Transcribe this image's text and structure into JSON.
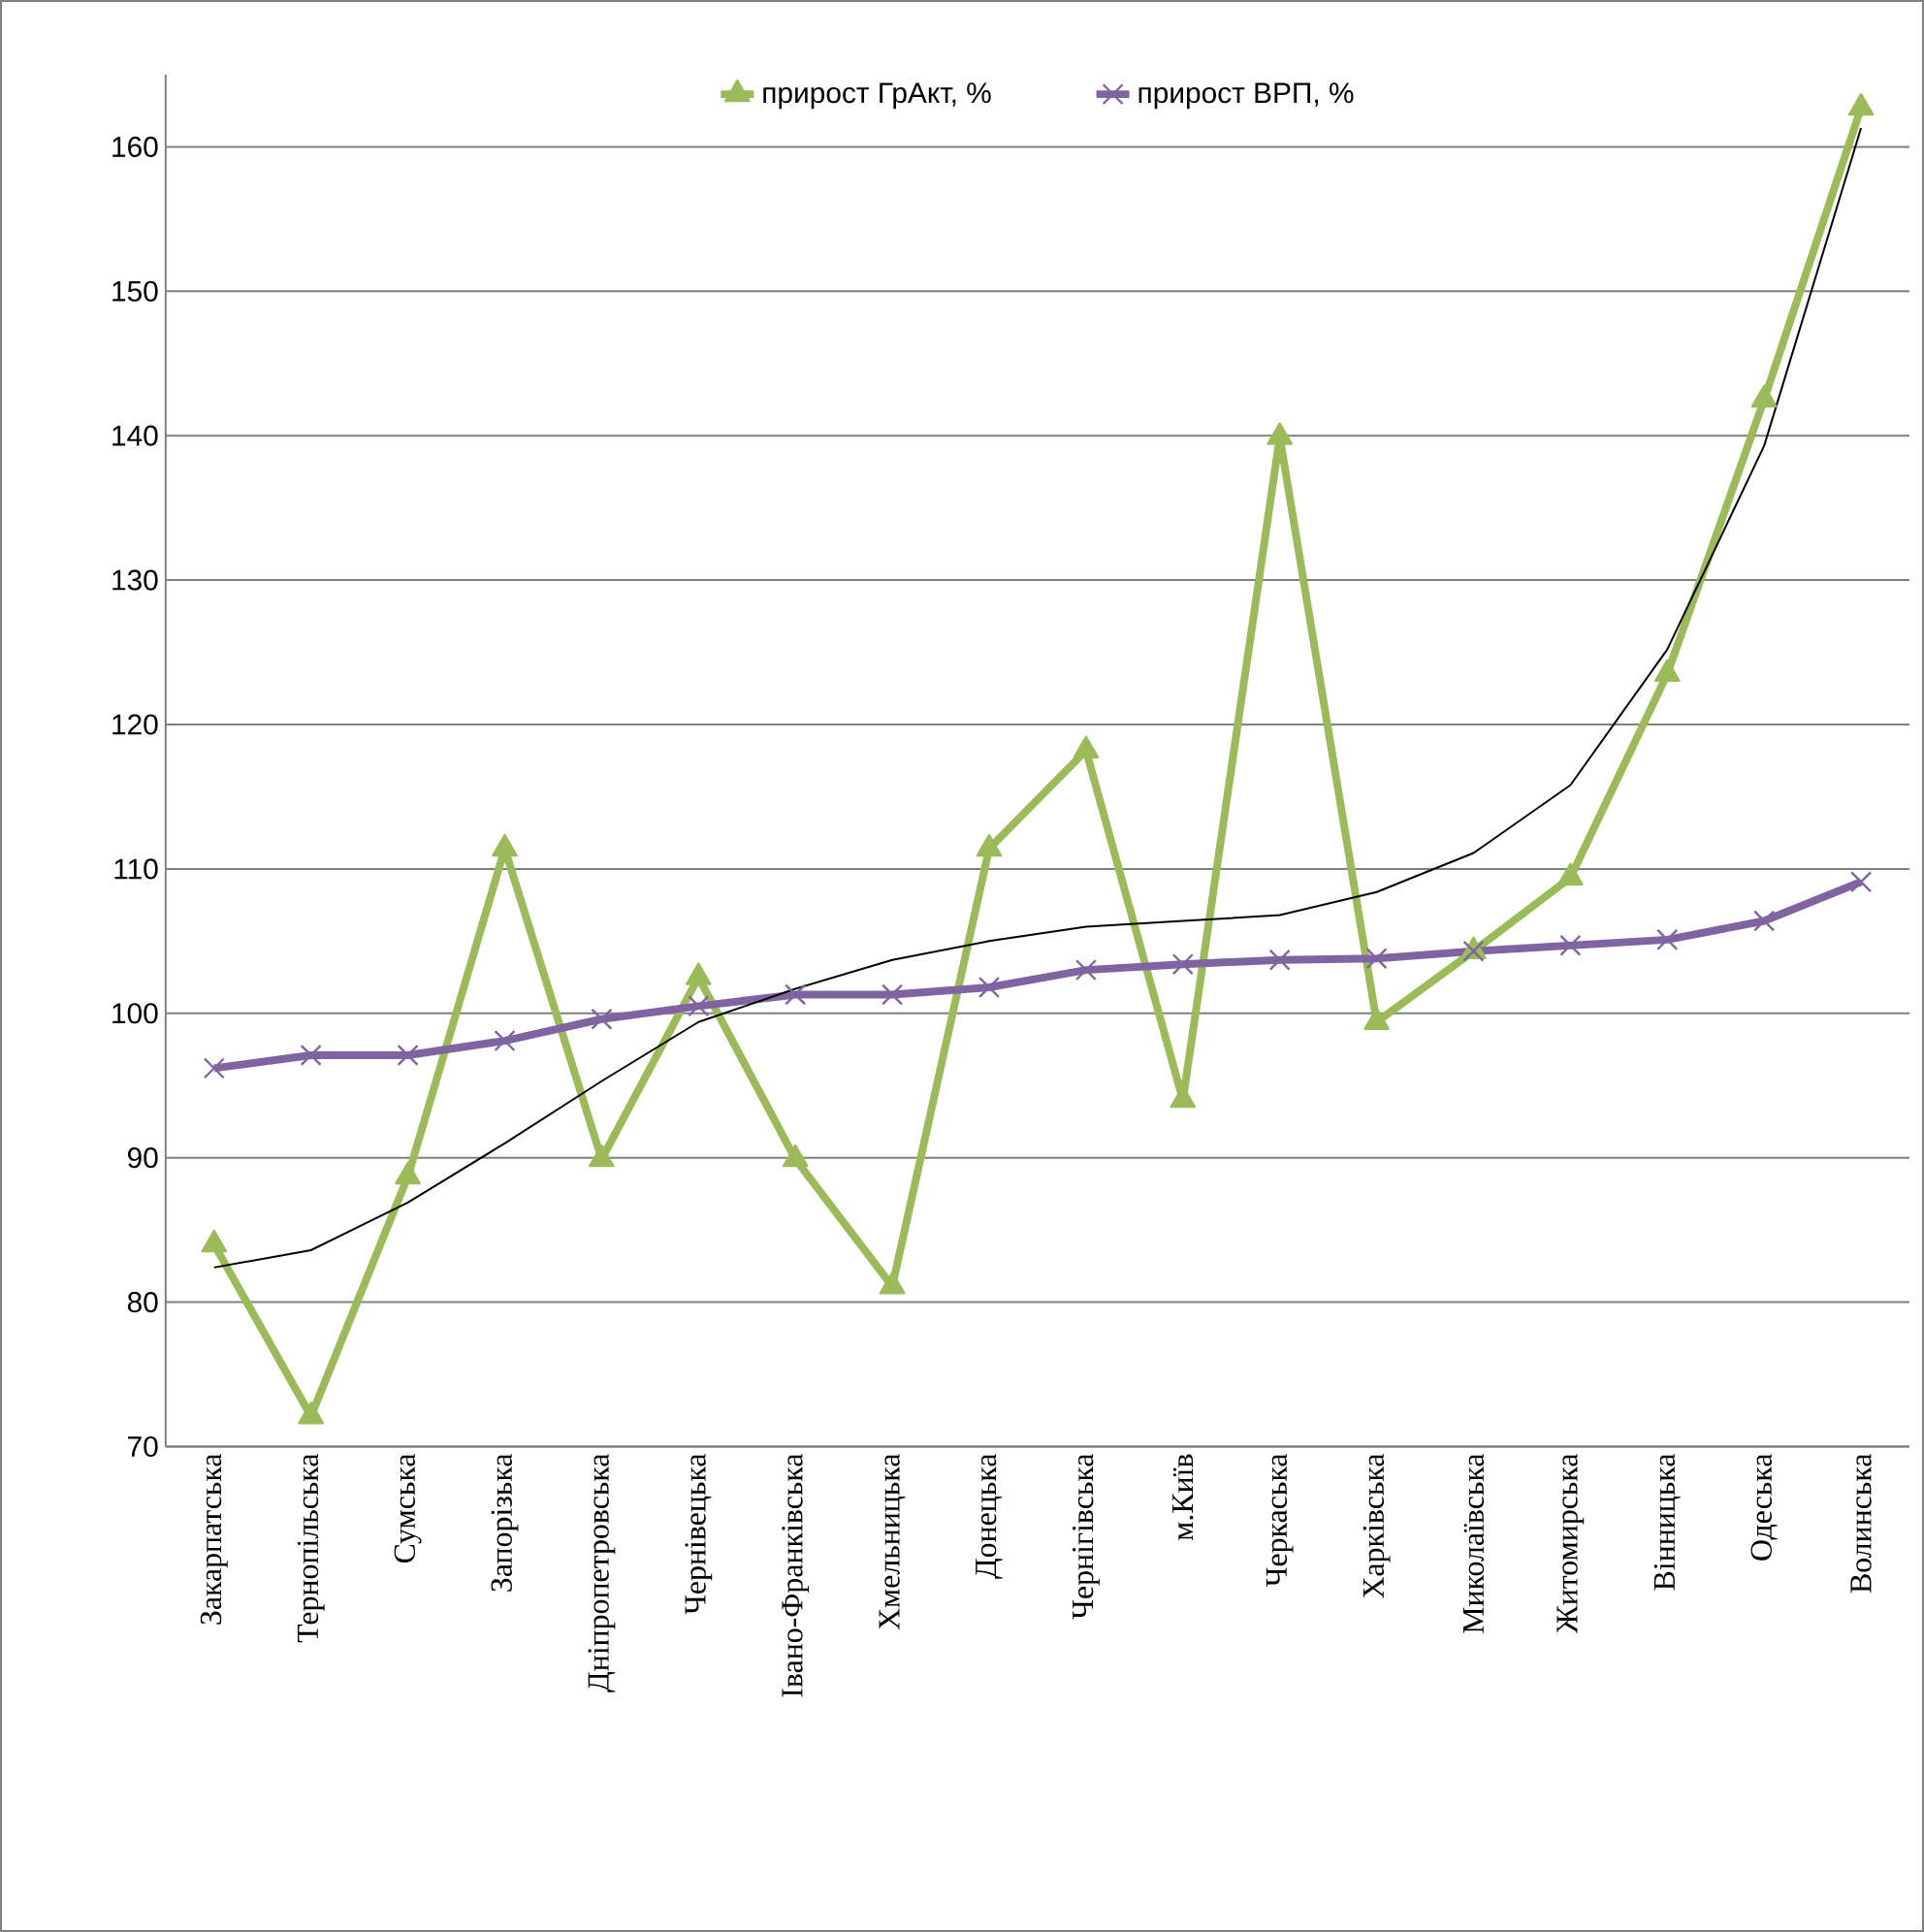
{
  "chart_data": {
    "type": "line",
    "categories": [
      "Закарпатська",
      "Тернопільська",
      "Сумська",
      "Запорізька",
      "Дніпропетровська",
      "Чернівецька",
      "Івано-Франківська",
      "Хмельницька",
      "Донецька",
      "Чернігівська",
      "м.Київ",
      "Черкаська",
      "Харківська",
      "Миколаївська",
      "Житомирська",
      "Вінницька",
      "Одеська",
      "Волинська"
    ],
    "series": [
      {
        "name": "прирост ГрАкт, %",
        "color": "#9bbb59",
        "marker": "triangle",
        "values": [
          84.0,
          72.1,
          88.7,
          111.4,
          89.9,
          102.5,
          89.9,
          81.1,
          111.4,
          118.2,
          94.0,
          139.9,
          99.4,
          104.3,
          109.4,
          123.5,
          142.5,
          162.7
        ]
      },
      {
        "name": "прирост ВРП, %",
        "color": "#8064a2",
        "marker": "cross",
        "values": [
          96.2,
          97.1,
          97.1,
          98.1,
          99.6,
          100.5,
          101.3,
          101.3,
          101.8,
          103.0,
          103.4,
          103.7,
          103.8,
          104.3,
          104.7,
          105.1,
          106.4,
          109.1
        ]
      },
      {
        "type": "line",
        "color": "#000000",
        "marker": "none",
        "values": [
          82.4,
          83.6,
          86.9,
          91.0,
          95.3,
          99.4,
          101.7,
          103.7,
          105.0,
          106.0,
          106.4,
          106.8,
          108.4,
          111.1,
          115.8,
          125.2,
          139.3,
          161.3
        ]
      }
    ],
    "ylim": [
      70,
      165
    ],
    "yticks": [
      70,
      80,
      90,
      100,
      110,
      120,
      130,
      140,
      150,
      160
    ],
    "grid": "y",
    "legend": "top"
  }
}
